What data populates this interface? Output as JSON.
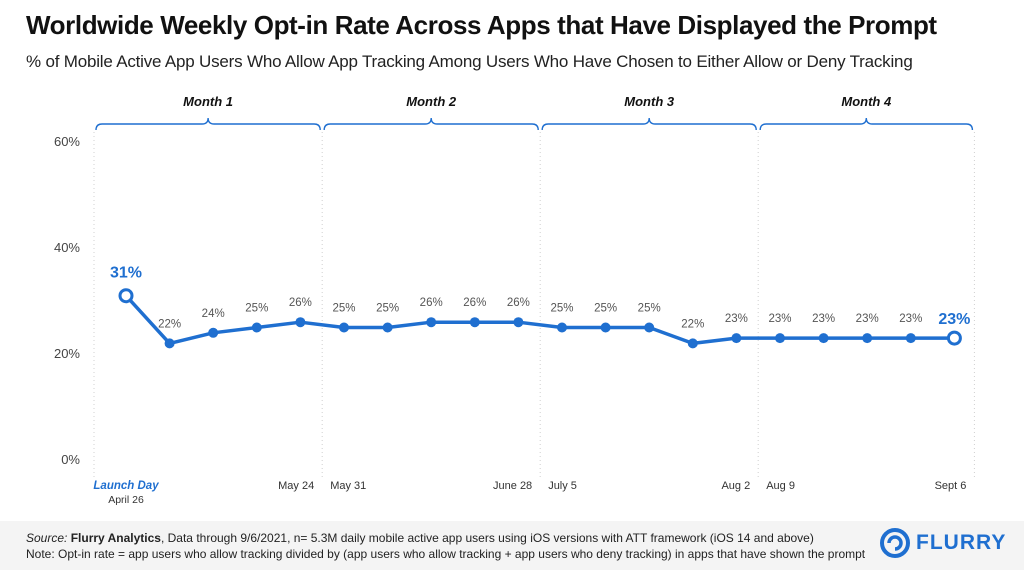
{
  "title": "Worldwide Weekly Opt-in Rate Across Apps that Have Displayed the Prompt",
  "subtitle": "% of Mobile Active App Users Who Allow App Tracking Among Users Who Have Chosen to Either Allow or Deny Tracking",
  "footer": {
    "source_label": "Source:",
    "source_name": "Flurry Analytics",
    "source_text": ", Data through 9/6/2021, n= 5.3M daily mobile active app users using iOS versions with ATT framework (iOS 14 and above)",
    "note": "Note: Opt-in rate = app users who allow tracking divided by (app users who allow tracking + app users who deny tracking) in apps that have shown the prompt"
  },
  "logo": {
    "text": "FLURRY",
    "icon": "flurry-logo-icon"
  },
  "colors": {
    "line": "#1f6fd0",
    "grid": "#d0d0d0",
    "text": "#555555"
  },
  "chart_data": {
    "type": "line",
    "title": "Worldwide Weekly Opt-in Rate Across Apps that Have Displayed the Prompt",
    "ylim": [
      0,
      60
    ],
    "yticks": [
      "0%",
      "20%",
      "40%",
      "60%"
    ],
    "ytick_values": [
      0,
      20,
      40,
      60
    ],
    "values": [
      31,
      22,
      24,
      25,
      26,
      25,
      25,
      26,
      26,
      26,
      25,
      25,
      25,
      22,
      23,
      23,
      23,
      23,
      23,
      23
    ],
    "data_labels": [
      "31%",
      "22%",
      "24%",
      "25%",
      "26%",
      "25%",
      "25%",
      "26%",
      "26%",
      "26%",
      "25%",
      "25%",
      "25%",
      "22%",
      "23%",
      "23%",
      "23%",
      "23%",
      "23%",
      "23%"
    ],
    "highlighted_points": [
      0,
      19
    ],
    "x_labels": [
      {
        "index": 0,
        "text": "Launch Day",
        "subtext": "April 26"
      },
      {
        "index": 4,
        "text": "May 24"
      },
      {
        "index": 5,
        "text": "May 31"
      },
      {
        "index": 9,
        "text": "June 28"
      },
      {
        "index": 10,
        "text": "July 5"
      },
      {
        "index": 14,
        "text": "Aug 2"
      },
      {
        "index": 15,
        "text": "Aug 9"
      },
      {
        "index": 19,
        "text": "Sept 6"
      }
    ],
    "months": [
      {
        "label": "Month 1",
        "start": 0,
        "end": 4
      },
      {
        "label": "Month 2",
        "start": 5,
        "end": 9
      },
      {
        "label": "Month 3",
        "start": 10,
        "end": 14
      },
      {
        "label": "Month 4",
        "start": 15,
        "end": 19
      }
    ],
    "grid": "vertical-dotted"
  }
}
